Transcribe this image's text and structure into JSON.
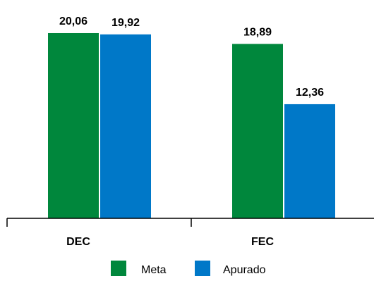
{
  "chart_data": {
    "type": "bar",
    "categories": [
      "DEC",
      "FEC"
    ],
    "series": [
      {
        "name": "Meta",
        "values": [
          20.06,
          18.89
        ],
        "color": "#00873C"
      },
      {
        "name": "Apurado",
        "values": [
          19.92,
          12.36
        ],
        "color": "#0078C8"
      }
    ],
    "value_labels": [
      [
        "20,06",
        "18,89"
      ],
      [
        "19,92",
        "12,36"
      ]
    ],
    "ylim": [
      0,
      22.5
    ],
    "grid": false,
    "legend": "bottom",
    "title": "",
    "xlabel": "",
    "ylabel": ""
  }
}
